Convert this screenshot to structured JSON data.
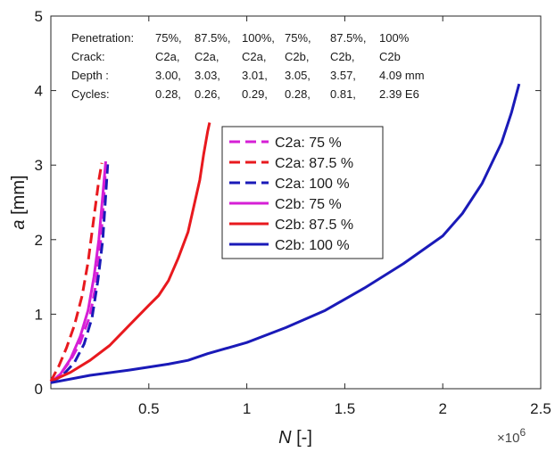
{
  "chart_data": {
    "type": "line",
    "xlabel_symbol": "N",
    "xlabel_unit": " [-]",
    "ylabel_symbol": "a",
    "ylabel_unit": " [mm]",
    "x_exponent_base": "×10",
    "x_exponent_power": "6",
    "xlim": [
      0,
      2.5
    ],
    "ylim": [
      0,
      5
    ],
    "xticks": [
      0.5,
      1,
      1.5,
      2,
      2.5
    ],
    "xtick_labels": [
      "0.5",
      "1",
      "1.5",
      "2",
      "2.5"
    ],
    "yticks": [
      0,
      1,
      2,
      3,
      4,
      5
    ],
    "ytick_labels": [
      "0",
      "1",
      "2",
      "3",
      "4",
      "5"
    ],
    "grid": false,
    "legend_position": "center",
    "info_rows": [
      [
        "Penetration:",
        "75%,",
        "87.5%,",
        "100%,",
        "75%,",
        "87.5%,",
        "100%"
      ],
      [
        "Crack:",
        "C2a,",
        "C2a,",
        "C2a,",
        "C2b,",
        "C2b,",
        "C2b"
      ],
      [
        "Depth :",
        "3.00,",
        "3.03,",
        "3.01,",
        "3.05,",
        "3.57,",
        "4.09 mm"
      ],
      [
        "Cycles:",
        "0.28,",
        "0.26,",
        "0.29,",
        "0.28,",
        "0.81,",
        "2.39  E6"
      ]
    ],
    "series": [
      {
        "name": "C2a: 75 %",
        "color": "#d61fd6",
        "dashed": true,
        "x": [
          0,
          0.05,
          0.1,
          0.15,
          0.2,
          0.23,
          0.25,
          0.265,
          0.275,
          0.28
        ],
        "y": [
          0.08,
          0.2,
          0.38,
          0.62,
          0.98,
          1.4,
          1.85,
          2.35,
          2.75,
          3.0
        ]
      },
      {
        "name": "C2a: 87.5 %",
        "color": "#e8191e",
        "dashed": true,
        "x": [
          0,
          0.04,
          0.08,
          0.12,
          0.16,
          0.19,
          0.21,
          0.23,
          0.245,
          0.26
        ],
        "y": [
          0.1,
          0.3,
          0.55,
          0.85,
          1.25,
          1.7,
          2.1,
          2.5,
          2.8,
          3.03
        ]
      },
      {
        "name": "C2a: 100 %",
        "color": "#1a1ab8",
        "dashed": true,
        "x": [
          0,
          0.06,
          0.12,
          0.17,
          0.21,
          0.24,
          0.265,
          0.28,
          0.29
        ],
        "y": [
          0.08,
          0.18,
          0.35,
          0.6,
          0.95,
          1.45,
          2.0,
          2.6,
          3.01
        ]
      },
      {
        "name": "C2b: 75 %",
        "color": "#d61fd6",
        "dashed": false,
        "x": [
          0,
          0.05,
          0.1,
          0.15,
          0.19,
          0.22,
          0.245,
          0.265,
          0.28
        ],
        "y": [
          0.08,
          0.2,
          0.4,
          0.7,
          1.05,
          1.5,
          2.0,
          2.6,
          3.05
        ]
      },
      {
        "name": "C2b: 87.5 %",
        "color": "#e8191e",
        "dashed": false,
        "x": [
          0,
          0.1,
          0.2,
          0.3,
          0.4,
          0.5,
          0.55,
          0.6,
          0.65,
          0.7,
          0.73,
          0.76,
          0.78,
          0.8,
          0.81
        ],
        "y": [
          0.1,
          0.22,
          0.38,
          0.58,
          0.85,
          1.12,
          1.25,
          1.45,
          1.75,
          2.1,
          2.45,
          2.8,
          3.15,
          3.45,
          3.57
        ]
      },
      {
        "name": "C2b: 100 %",
        "color": "#1a1ab8",
        "dashed": false,
        "x": [
          0,
          0.2,
          0.4,
          0.6,
          0.7,
          0.8,
          1.0,
          1.2,
          1.4,
          1.6,
          1.8,
          2.0,
          2.1,
          2.2,
          2.3,
          2.35,
          2.39
        ],
        "y": [
          0.08,
          0.18,
          0.25,
          0.33,
          0.38,
          0.47,
          0.62,
          0.82,
          1.05,
          1.35,
          1.68,
          2.05,
          2.35,
          2.75,
          3.3,
          3.7,
          4.09
        ]
      }
    ]
  }
}
